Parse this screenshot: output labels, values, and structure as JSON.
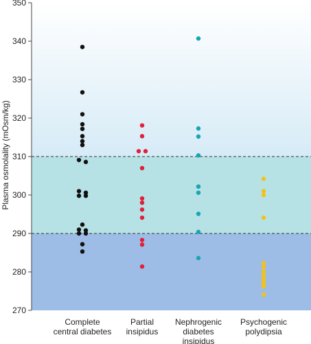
{
  "chart_data": {
    "type": "scatter",
    "ylabel": "Plasma osmolality (mOsm/kg)",
    "ylim": [
      270,
      350
    ],
    "yticks": [
      270,
      280,
      290,
      300,
      310,
      320,
      330,
      340,
      350
    ],
    "reference_lines": [
      290,
      310
    ],
    "bands": [
      {
        "name": "low",
        "range": [
          270,
          290
        ],
        "color": "#9dbde6"
      },
      {
        "name": "normal",
        "range": [
          290,
          310
        ],
        "color": "#b6e2e6"
      },
      {
        "name": "high",
        "range": [
          310,
          350
        ],
        "color_top": "#ffffff",
        "color_bottom": "#d6ebf7"
      }
    ],
    "categories": [
      {
        "lines": [
          "Complete",
          "central diabetes"
        ]
      },
      {
        "lines": [
          "Partial",
          "insipidus"
        ]
      },
      {
        "lines": [
          "Nephrogenic",
          "diabetes",
          "insipidus"
        ]
      },
      {
        "lines": [
          "Psychogenic",
          "polydipsia"
        ]
      }
    ],
    "series": [
      {
        "color": "#111111",
        "points": [
          [
            0,
            338.5
          ],
          [
            0,
            326.7
          ],
          [
            0,
            321.0
          ],
          [
            0,
            318.4
          ],
          [
            0,
            317.2
          ],
          [
            0,
            315.3
          ],
          [
            0,
            314.0
          ],
          [
            0,
            313.0
          ],
          [
            -0.5,
            309.1
          ],
          [
            0.5,
            308.6
          ],
          [
            -0.5,
            301.0
          ],
          [
            0.5,
            300.6
          ],
          [
            -0.5,
            299.8
          ],
          [
            0.5,
            299.8
          ],
          [
            0,
            292.3
          ],
          [
            -0.5,
            291.0
          ],
          [
            0.5,
            290.8
          ],
          [
            -0.5,
            290.0
          ],
          [
            0.5,
            290.0
          ],
          [
            0,
            287.2
          ],
          [
            0,
            285.3
          ]
        ]
      },
      {
        "color": "#e0203a",
        "points": [
          [
            0,
            318.1
          ],
          [
            0,
            315.3
          ],
          [
            -0.5,
            311.4
          ],
          [
            0.5,
            311.4
          ],
          [
            0,
            307.0
          ],
          [
            0,
            299.1
          ],
          [
            0,
            298.0
          ],
          [
            0,
            296.2
          ],
          [
            0,
            294.1
          ],
          [
            0,
            288.3
          ],
          [
            0,
            287.1
          ],
          [
            0,
            281.4
          ]
        ]
      },
      {
        "color": "#1aa5b5",
        "points": [
          [
            0,
            340.7
          ],
          [
            0,
            317.3
          ],
          [
            0,
            315.2
          ],
          [
            0,
            310.3
          ],
          [
            0,
            302.2
          ],
          [
            0,
            300.6
          ],
          [
            0,
            295.1
          ],
          [
            0,
            290.4
          ],
          [
            0,
            283.6
          ]
        ]
      },
      {
        "color": "#f2c21b",
        "points": [
          [
            0,
            304.2
          ],
          [
            0,
            301.0
          ],
          [
            0,
            300.0
          ],
          [
            0,
            294.1
          ],
          [
            0,
            282.3
          ],
          [
            0,
            281.2
          ],
          [
            0,
            280.0
          ],
          [
            0,
            279.0
          ],
          [
            0,
            278.0
          ],
          [
            0,
            277.0
          ],
          [
            0,
            276.2
          ],
          [
            0,
            274.1
          ]
        ]
      }
    ]
  }
}
